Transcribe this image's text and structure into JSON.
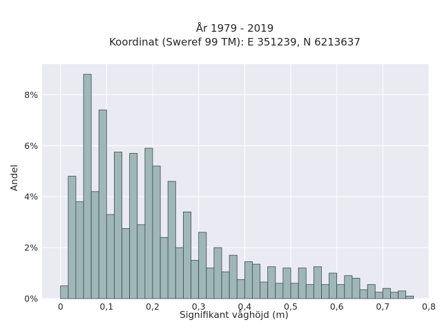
{
  "chart_data": {
    "type": "bar",
    "title": "År 1979 - 2019",
    "subtitle": "Koordinat (Sweref 99 TM): E 351239, N 6213637",
    "xlabel": "Signifikant våghöjd (m)",
    "ylabel": "Andel",
    "xlim": [
      -0.04,
      0.8
    ],
    "ylim": [
      0,
      9.2
    ],
    "grid": true,
    "bin_width": 0.01667,
    "xticks": [
      0,
      0.1,
      0.2,
      0.3,
      0.4,
      0.5,
      0.6,
      0.7,
      0.8
    ],
    "xtick_labels": [
      "0",
      "0,1",
      "0,2",
      "0,3",
      "0,4",
      "0,5",
      "0,6",
      "0,7",
      "0,8"
    ],
    "yticks": [
      0,
      2,
      4,
      6,
      8
    ],
    "ytick_labels": [
      "0%",
      "2%",
      "4%",
      "6%",
      "8%"
    ],
    "bin_starts": [
      0,
      0.0167,
      0.0333,
      0.05,
      0.0667,
      0.0833,
      0.1,
      0.1167,
      0.1333,
      0.15,
      0.1667,
      0.1833,
      0.2,
      0.2167,
      0.2333,
      0.25,
      0.2667,
      0.2833,
      0.3,
      0.3167,
      0.3333,
      0.35,
      0.3667,
      0.3833,
      0.4,
      0.4167,
      0.4333,
      0.45,
      0.4667,
      0.4833,
      0.5,
      0.5167,
      0.5333,
      0.55,
      0.5667,
      0.5833,
      0.6,
      0.6167,
      0.6333,
      0.65,
      0.6667,
      0.6833,
      0.7,
      0.7167,
      0.7333,
      0.75
    ],
    "values": [
      0.5,
      4.8,
      3.8,
      8.8,
      4.2,
      7.4,
      3.3,
      5.75,
      2.75,
      5.7,
      2.9,
      5.9,
      5.2,
      2.4,
      4.6,
      2.0,
      3.4,
      1.5,
      2.6,
      1.2,
      2.0,
      1.05,
      1.7,
      0.75,
      1.45,
      1.35,
      0.65,
      1.25,
      0.6,
      1.2,
      0.6,
      1.2,
      0.55,
      1.25,
      0.55,
      1.0,
      0.55,
      0.9,
      0.8,
      0.35,
      0.55,
      0.25,
      0.4,
      0.25,
      0.3,
      0.1
    ],
    "colors": {
      "bar_fill": "#9fb7b7",
      "bar_edge": "#3d4a4a",
      "plot_bg": "#eaeaf2",
      "grid": "#ffffff"
    }
  }
}
